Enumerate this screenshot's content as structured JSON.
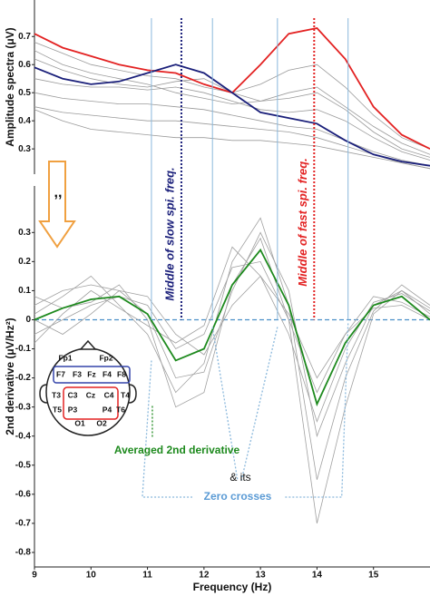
{
  "chart_data": [
    {
      "type": "line",
      "ylabel": "Amplitude spectra (μV)",
      "xlim": [
        9,
        16
      ],
      "ylim": [
        0.21,
        0.83
      ],
      "yticks": [
        0.3,
        0.4,
        0.5,
        0.6,
        0.7
      ],
      "x": [
        9,
        9.5,
        10,
        10.5,
        11,
        11.5,
        12,
        12.5,
        13,
        13.5,
        14,
        14.5,
        15,
        15.5,
        16
      ],
      "series": [
        {
          "color": "#9a9a9a",
          "values": [
            0.68,
            0.64,
            0.6,
            0.58,
            0.56,
            0.55,
            0.52,
            0.5,
            0.53,
            0.58,
            0.6,
            0.52,
            0.42,
            0.34,
            0.3
          ]
        },
        {
          "color": "#9a9a9a",
          "values": [
            0.65,
            0.6,
            0.57,
            0.55,
            0.53,
            0.5,
            0.48,
            0.46,
            0.47,
            0.5,
            0.52,
            0.45,
            0.38,
            0.32,
            0.28
          ]
        },
        {
          "color": "#9a9a9a",
          "values": [
            0.55,
            0.53,
            0.52,
            0.52,
            0.51,
            0.52,
            0.5,
            0.47,
            0.44,
            0.43,
            0.44,
            0.4,
            0.34,
            0.29,
            0.26
          ]
        },
        {
          "color": "#9a9a9a",
          "values": [
            0.5,
            0.48,
            0.47,
            0.46,
            0.46,
            0.45,
            0.44,
            0.42,
            0.4,
            0.38,
            0.37,
            0.33,
            0.29,
            0.26,
            0.24
          ]
        },
        {
          "color": "#9a9a9a",
          "values": [
            0.45,
            0.43,
            0.42,
            0.41,
            0.4,
            0.4,
            0.39,
            0.38,
            0.37,
            0.36,
            0.34,
            0.31,
            0.28,
            0.25,
            0.23
          ]
        },
        {
          "color": "#9a9a9a",
          "values": [
            0.62,
            0.58,
            0.55,
            0.53,
            0.52,
            0.54,
            0.55,
            0.5,
            0.47,
            0.48,
            0.5,
            0.44,
            0.36,
            0.3,
            0.27
          ]
        },
        {
          "color": "#9a9a9a",
          "values": [
            0.44,
            0.4,
            0.37,
            0.36,
            0.35,
            0.34,
            0.34,
            0.33,
            0.33,
            0.32,
            0.31,
            0.29,
            0.27,
            0.25,
            0.23
          ]
        },
        {
          "color": "#e32222",
          "values": [
            0.71,
            0.66,
            0.63,
            0.6,
            0.58,
            0.57,
            0.53,
            0.5,
            0.6,
            0.71,
            0.73,
            0.62,
            0.45,
            0.35,
            0.3
          ]
        },
        {
          "color": "#1a1f7a",
          "values": [
            0.59,
            0.55,
            0.53,
            0.54,
            0.57,
            0.6,
            0.57,
            0.5,
            0.43,
            0.41,
            0.39,
            0.33,
            0.28,
            0.255,
            0.24
          ]
        }
      ]
    },
    {
      "type": "line",
      "ylabel": "2nd derivative (μV/Hz²)",
      "xlabel": "Frequency (Hz)",
      "xlim": [
        9,
        16
      ],
      "ylim": [
        -0.85,
        0.46
      ],
      "yticks": [
        0.3,
        0.2,
        0.1,
        0,
        -0.1,
        -0.2,
        -0.3,
        -0.4,
        -0.5,
        -0.6,
        -0.7,
        -0.8
      ],
      "xticks": [
        9,
        10,
        11,
        12,
        13,
        14,
        15
      ],
      "x": [
        9,
        9.5,
        10,
        10.5,
        11,
        11.5,
        12,
        12.5,
        13,
        13.5,
        14,
        14.5,
        15,
        15.5,
        16
      ],
      "series": [
        {
          "color": "#a0a0a0",
          "values": [
            0.05,
            0.1,
            0.12,
            0.1,
            0.02,
            -0.2,
            -0.18,
            0.1,
            0.3,
            0.1,
            -0.4,
            -0.15,
            0.05,
            0.1,
            0.02
          ]
        },
        {
          "color": "#a0a0a0",
          "values": [
            -0.05,
            0.0,
            0.05,
            0.08,
            0.05,
            -0.1,
            -0.05,
            0.18,
            0.2,
            0.0,
            -0.25,
            -0.05,
            0.08,
            0.06,
            0.01
          ]
        },
        {
          "color": "#a0a0a0",
          "values": [
            0.02,
            0.08,
            0.15,
            0.05,
            -0.05,
            -0.25,
            -0.15,
            0.2,
            0.35,
            0.05,
            -0.55,
            -0.2,
            0.03,
            0.12,
            0.05
          ]
        },
        {
          "color": "#a0a0a0",
          "values": [
            0.0,
            -0.05,
            0.02,
            0.1,
            0.08,
            -0.05,
            -0.12,
            0.05,
            0.15,
            0.02,
            -0.2,
            -0.05,
            0.04,
            0.05,
            0.0
          ]
        },
        {
          "color": "#a0a0a0",
          "values": [
            0.08,
            0.04,
            0.06,
            0.12,
            0.0,
            -0.3,
            -0.25,
            0.12,
            0.28,
            0.0,
            -0.7,
            -0.3,
            0.02,
            0.1,
            0.04
          ]
        },
        {
          "color": "#a0a0a0",
          "values": [
            -0.08,
            0.02,
            0.1,
            0.04,
            -0.02,
            -0.08,
            -0.02,
            0.25,
            0.15,
            -0.05,
            -0.35,
            -0.1,
            0.06,
            0.09,
            0.03
          ]
        },
        {
          "name": "Averaged 2nd derivative",
          "color": "#1e8a1e",
          "values": [
            0.0,
            0.04,
            0.07,
            0.08,
            0.02,
            -0.14,
            -0.1,
            0.12,
            0.24,
            0.05,
            -0.29,
            -0.08,
            0.05,
            0.08,
            0.0
          ]
        }
      ],
      "zero_crosses": [
        11.07,
        12.15,
        13.3,
        14.55
      ],
      "zero_cross_color": "#8ab8dc",
      "zero_line_color": "#4a90c8",
      "annotations": [
        {
          "text": "Middle of slow spi. freq.",
          "x": 11.6,
          "color": "#1a1f7a"
        },
        {
          "text": "Middle of fast spi. freq.",
          "x": 13.95,
          "color": "#e32222"
        },
        {
          "text": "& its"
        },
        {
          "text": "Zero crosses",
          "color": "#5b9bd5"
        }
      ]
    }
  ],
  "head_diagram": {
    "labels": [
      "Fp1",
      "Fp2",
      "F7",
      "F3",
      "Fz",
      "F4",
      "F8",
      "T3",
      "C3",
      "Cz",
      "C4",
      "T4",
      "T5",
      "P3",
      "P4",
      "T6",
      "O1",
      "O2"
    ]
  },
  "arrow_label": ",,"
}
